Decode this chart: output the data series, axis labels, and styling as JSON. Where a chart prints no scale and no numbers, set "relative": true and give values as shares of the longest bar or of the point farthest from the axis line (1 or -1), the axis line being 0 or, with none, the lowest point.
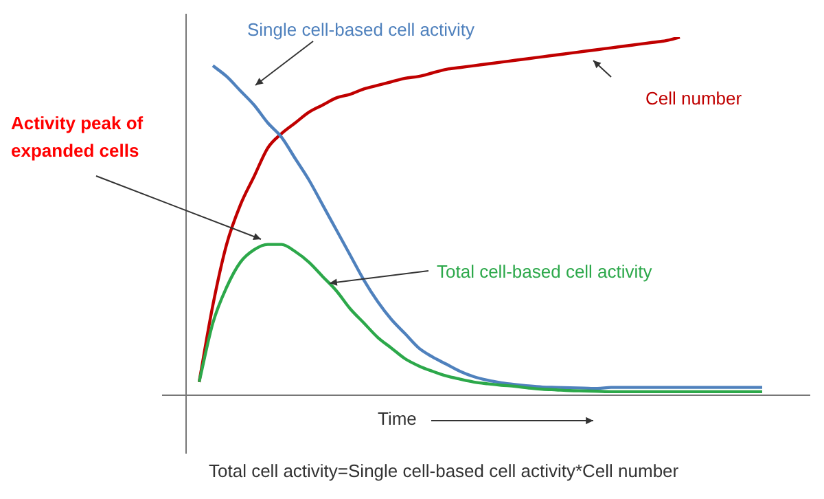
{
  "chart_data": {
    "type": "line",
    "relative": true,
    "xlabel": "Time",
    "legend": false,
    "marker": "none",
    "categories": [
      null,
      null,
      null,
      null,
      null,
      null,
      null,
      null,
      null,
      null,
      null,
      null,
      null,
      null,
      null,
      null,
      null,
      null,
      null,
      null,
      null,
      null,
      null,
      null,
      null,
      null,
      null,
      null,
      null,
      null,
      null,
      null,
      null,
      null,
      null,
      null,
      null,
      null,
      null,
      null,
      null,
      null
    ],
    "series": [
      {
        "name": "Cell number",
        "color": "#c00000",
        "values": [
          0.035,
          0.25,
          0.42,
          0.53,
          0.61,
          0.69,
          0.73,
          0.76,
          0.79,
          0.81,
          0.83,
          0.84,
          0.855,
          0.865,
          0.875,
          0.885,
          0.89,
          0.9,
          0.91,
          0.915,
          0.92,
          0.925,
          0.93,
          0.935,
          0.94,
          0.945,
          0.95,
          0.955,
          0.96,
          0.965,
          0.97,
          0.975,
          0.98,
          0.985,
          0.99,
          1.0,
          null,
          null,
          null,
          null,
          null,
          null
        ]
      },
      {
        "name": "Single cell-based cell activity",
        "color": "#4f81bd",
        "values": [
          null,
          0.92,
          0.89,
          0.85,
          0.81,
          0.76,
          0.72,
          0.66,
          0.6,
          0.53,
          0.46,
          0.39,
          0.32,
          0.26,
          0.21,
          0.17,
          0.13,
          0.105,
          0.085,
          0.065,
          0.05,
          0.04,
          0.033,
          0.028,
          0.024,
          0.021,
          0.02,
          0.019,
          0.018,
          0.017,
          0.02,
          0.02,
          0.02,
          0.02,
          0.02,
          0.02,
          0.02,
          0.02,
          0.02,
          0.02,
          0.02,
          0.02
        ]
      },
      {
        "name": "Total cell-based cell activity",
        "color": "#2ca84a",
        "values": [
          0.035,
          0.2,
          0.3,
          0.37,
          0.405,
          0.42,
          0.42,
          0.4,
          0.37,
          0.33,
          0.29,
          0.24,
          0.2,
          0.16,
          0.13,
          0.1,
          0.08,
          0.065,
          0.052,
          0.043,
          0.035,
          0.03,
          0.026,
          0.023,
          0.018,
          0.015,
          0.013,
          0.011,
          0.01,
          0.009,
          0.008,
          0.008,
          0.008,
          0.008,
          0.008,
          0.008,
          0.008,
          0.008,
          0.008,
          0.008,
          0.008,
          0.008
        ]
      }
    ],
    "annotations": [
      "Activity peak of expanded cells",
      "Total cell activity=Single cell-based cell activity*Cell number"
    ]
  }
}
